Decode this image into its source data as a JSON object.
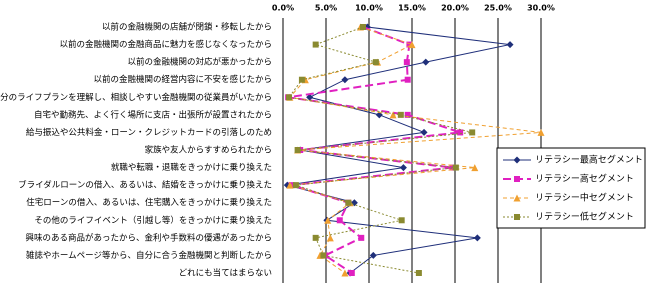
{
  "chart_data": {
    "type": "line",
    "orientation": "horizontal",
    "categories": [
      "以前の金融機関の店舗が閉鎖・移転したから",
      "以前の金融機関の金融商品に魅力を感じなくなったから",
      "以前の金融機関の対応が悪かったから",
      "以前の金融機関の経営内容に不安を感じたから",
      "自分のライフプランを理解し、相談しやすい金融機関の従業員がいたから",
      "自宅や勤務先、よく行く場所に支店・出張所が設置されたから",
      "給与振込や公共料金・ローン・クレジットカードの引落しのため",
      "家族や友人からすすめられたから",
      "就職や転職・退職をきっかけに乗り換えた",
      "ブライダルローンの借入、あるいは、結婚をきっかけに乗り換えた",
      "住宅ローンの借入、あるいは、住宅購入をきっかけに乗り換えた",
      "その他のライフイベント（引越し等）をきっかけに乗り換えた",
      "興味のある商品があったから、金利や手数料の優遇があったから",
      "雑誌やホームページ等から、自分に合う金融機関と判断したから",
      "どれにも当てはまらない"
    ],
    "series": [
      {
        "name": "リテラシー最高セグメント",
        "color": "#1f2f7a",
        "values": [
          9.8,
          26.4,
          16.6,
          7.2,
          3.1,
          11.2,
          16.4,
          2.0,
          14.0,
          0.5,
          8.3,
          5.1,
          22.6,
          10.5,
          7.8
        ]
      },
      {
        "name": "リテラシー高セグメント",
        "color": "#e020c0",
        "values": [
          9.3,
          14.7,
          14.4,
          14.5,
          0.6,
          14.5,
          20.6,
          2.0,
          19.7,
          1.0,
          7.6,
          6.6,
          9.1,
          4.9,
          8.0
        ]
      },
      {
        "name": "リテラシー中セグメント",
        "color": "#f0a030",
        "values": [
          9.0,
          15.0,
          11.0,
          2.6,
          0.8,
          12.8,
          30.0,
          1.7,
          22.3,
          0.8,
          7.8,
          5.2,
          5.5,
          4.3,
          7.2
        ]
      },
      {
        "name": "リテラシー低セグメント",
        "color": "#8a8a30",
        "values": [
          9.3,
          3.8,
          10.8,
          2.2,
          0.7,
          13.7,
          22.0,
          1.7,
          20.1,
          1.5,
          7.6,
          13.8,
          3.8,
          4.7,
          15.8
        ]
      }
    ],
    "xlim": [
      0,
      30
    ],
    "xticks": [
      {
        "value": 0,
        "label": "0.0%"
      },
      {
        "value": 5,
        "label": "5.0%"
      },
      {
        "value": 10,
        "label": "10.0%"
      },
      {
        "value": 15,
        "label": "15.0%"
      },
      {
        "value": 20,
        "label": "20.0%"
      },
      {
        "value": 25,
        "label": "25.0%"
      },
      {
        "value": 30,
        "label": "30.0%"
      }
    ],
    "grid": true,
    "legend": "right"
  }
}
